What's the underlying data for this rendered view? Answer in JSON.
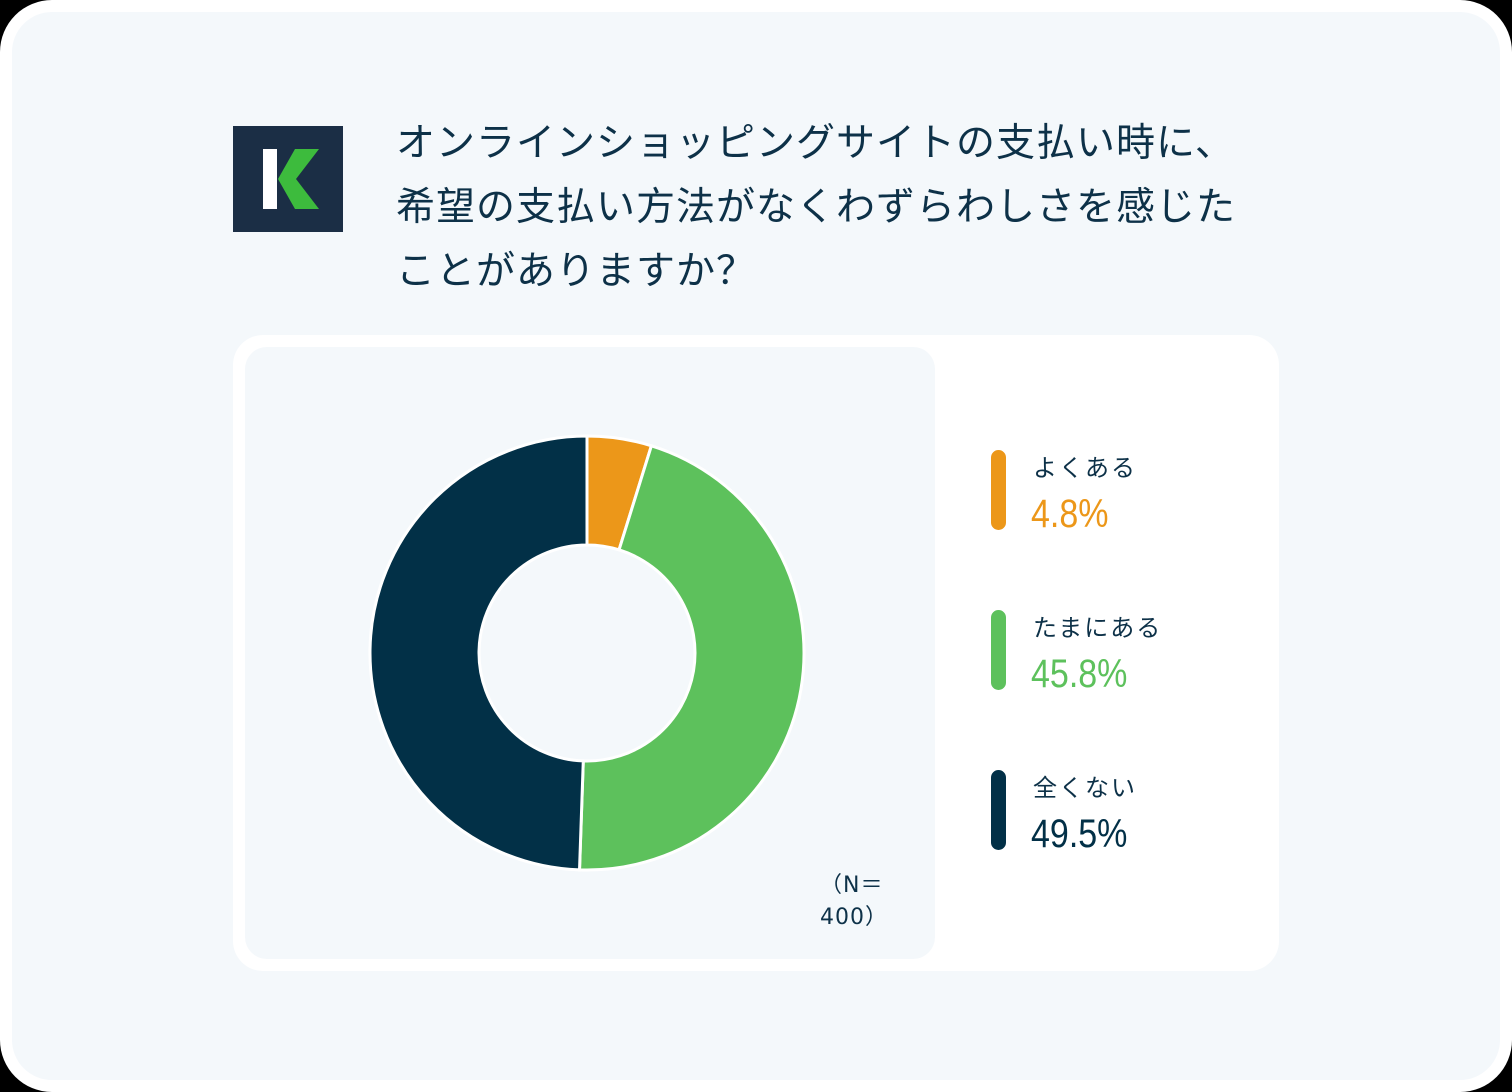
{
  "logo": {
    "letter": "K",
    "bg_color": "#1b2e45",
    "stem_color": "#ffffff",
    "chevron_color": "#3dbb3d"
  },
  "title": {
    "lines": [
      "オンラインショッピングサイトの支払い時に、",
      "希望の支払い方法がなくわずらわしさを感じた",
      "ことがありますか？"
    ]
  },
  "sample_size": "（N＝400）",
  "legend": [
    {
      "label": "よくある",
      "value": "4.8%",
      "color": "#ec9719"
    },
    {
      "label": "たまにある",
      "value": "45.8%",
      "color": "#5dc15c"
    },
    {
      "label": "全くない",
      "value": "49.5%",
      "color": "#023047"
    }
  ],
  "chart_data": {
    "type": "pie",
    "variant": "donut",
    "title": "オンラインショッピングサイトの支払い時に、希望の支払い方法がなくわずらわしさを感じたことがありますか？",
    "categories": [
      "よくある",
      "たまにある",
      "全くない"
    ],
    "values": [
      4.8,
      45.8,
      49.5
    ],
    "unit": "%",
    "colors": [
      "#ec9719",
      "#5dc15c",
      "#023047"
    ],
    "start_angle": "12 o'clock, clockwise",
    "annotation": "（N＝400）",
    "legend_position": "right"
  }
}
